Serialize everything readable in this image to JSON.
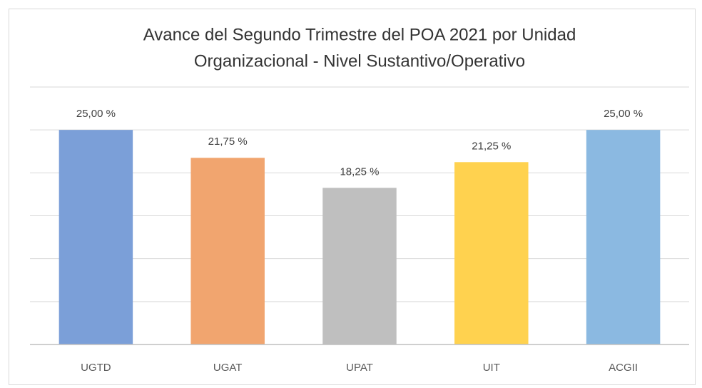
{
  "chart_data": {
    "type": "bar",
    "title": [
      "Avance del Segundo Trimestre del POA 2021 por Unidad",
      "Organizacional - Nivel Sustantivo/Operativo"
    ],
    "categories": [
      "UGTD",
      "UGAT",
      "UPAT",
      "UIT",
      "ACGII"
    ],
    "values": [
      25,
      21.75,
      18.25,
      21.25,
      25
    ],
    "value_labels": [
      "25,00 %",
      "21,75 %",
      "18,25 %",
      "21,25 %",
      "25,00 %"
    ],
    "colors": [
      "#7b9fd8",
      "#f1a56f",
      "#bfbfbf",
      "#ffd24f",
      "#8bb9e1"
    ],
    "ylim": [
      0,
      30
    ],
    "yticks": [
      0,
      5,
      10,
      15,
      20,
      25,
      30
    ],
    "grid": true
  }
}
